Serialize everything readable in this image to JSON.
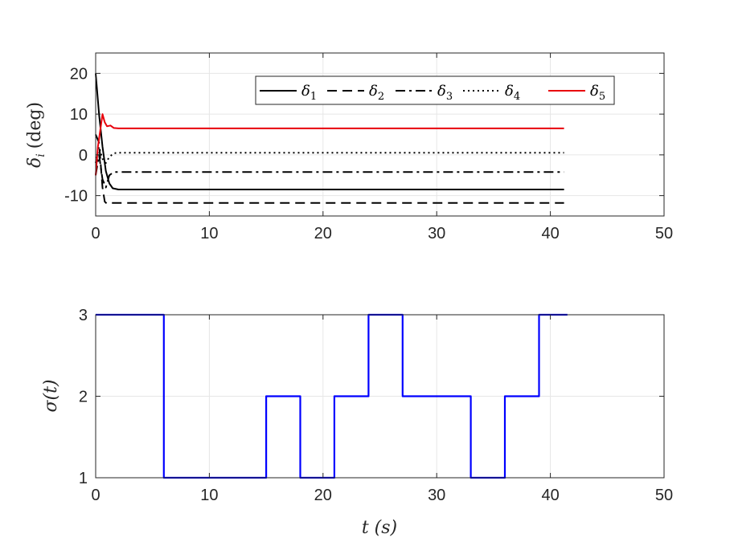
{
  "chart_data": [
    {
      "type": "line",
      "ylabel": "δ_i (deg)",
      "xlabel": "",
      "xlim": [
        0,
        50
      ],
      "ylim": [
        -15,
        25
      ],
      "xticks": [
        "0",
        "10",
        "20",
        "30",
        "40",
        "50"
      ],
      "yticks": [
        "-10",
        "0",
        "10",
        "20"
      ],
      "grid": true,
      "legend": "top-right, horizontal",
      "series": [
        {
          "name": "δ1",
          "color": "#000000",
          "style": "solid",
          "x": [
            0,
            0.3,
            0.6,
            0.9,
            1.2,
            1.5,
            2,
            41.2
          ],
          "y": [
            20,
            10,
            2,
            -4,
            -7,
            -8.2,
            -8.5,
            -8.5
          ]
        },
        {
          "name": "δ2",
          "color": "#000000",
          "style": "dashed",
          "x": [
            0,
            0.3,
            0.6,
            0.8,
            1.0,
            1.3,
            2,
            41.2
          ],
          "y": [
            5,
            3,
            -8,
            -11.5,
            -12,
            -11.8,
            -11.8,
            -11.8
          ]
        },
        {
          "name": "δ3",
          "color": "#000000",
          "style": "dashdot",
          "x": [
            0,
            0.3,
            0.6,
            0.9,
            1.2,
            1.6,
            2,
            41.2
          ],
          "y": [
            -5,
            0,
            -6,
            -8,
            -5,
            -4.2,
            -4.2,
            -4.2
          ]
        },
        {
          "name": "δ4",
          "color": "#000000",
          "style": "dotted",
          "x": [
            0,
            0.3,
            0.6,
            0.9,
            1.2,
            1.6,
            2,
            41.2
          ],
          "y": [
            -2,
            2,
            -1,
            -2,
            -0.5,
            0.4,
            0.5,
            0.5
          ]
        },
        {
          "name": "δ5",
          "color": "#e8000b",
          "style": "solid",
          "x": [
            0,
            0.2,
            0.4,
            0.6,
            0.8,
            1.0,
            1.3,
            1.6,
            2,
            41.2
          ],
          "y": [
            -5,
            2,
            6,
            10,
            8,
            7,
            7.2,
            6.6,
            6.5,
            6.5
          ]
        }
      ]
    },
    {
      "type": "line",
      "ylabel": "σ(t)",
      "xlabel": "t (s)",
      "xlim": [
        0,
        50
      ],
      "ylim": [
        1,
        3
      ],
      "xticks": [
        "0",
        "10",
        "20",
        "30",
        "40",
        "50"
      ],
      "yticks": [
        "1",
        "2",
        "3"
      ],
      "grid": true,
      "series": [
        {
          "name": "",
          "color": "#0000ff",
          "style": "step",
          "x": [
            0,
            6,
            6,
            15,
            15,
            18,
            18,
            21,
            21,
            24,
            24,
            27,
            27,
            33,
            33,
            36,
            36,
            39,
            39,
            41.5
          ],
          "y": [
            3,
            3,
            1,
            1,
            2,
            2,
            1,
            1,
            2,
            2,
            3,
            3,
            2,
            2,
            1,
            1,
            2,
            2,
            3,
            3
          ]
        }
      ]
    }
  ],
  "legend": {
    "labels": [
      "δ",
      "δ",
      "δ",
      "δ",
      "δ"
    ],
    "subscripts": [
      "1",
      "2",
      "3",
      "4",
      "5"
    ]
  },
  "axes_labels": {
    "top_y_main": "δ",
    "top_y_sub": "i",
    "top_y_unit": "(deg)",
    "bottom_y": "σ(t)",
    "bottom_x": "t (s)"
  }
}
